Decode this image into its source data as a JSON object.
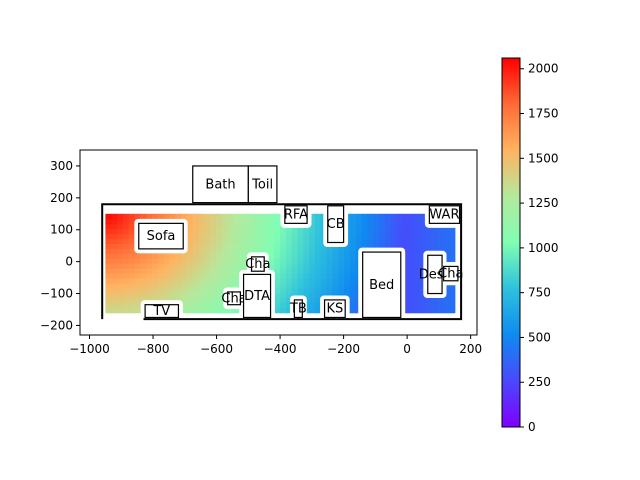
{
  "chart_data": {
    "type": "heatmap",
    "title": "",
    "xlabel": "",
    "ylabel": "",
    "xlim": [
      -1030,
      220
    ],
    "ylim": [
      -230,
      350
    ],
    "xticks": [
      -1000,
      -800,
      -600,
      -400,
      -200,
      0,
      200
    ],
    "yticks": [
      -200,
      -100,
      0,
      100,
      200,
      300
    ],
    "colormap": "rainbow",
    "colorbar": {
      "range": [
        0,
        2060
      ],
      "ticks": [
        0,
        250,
        500,
        750,
        1000,
        1250,
        1500,
        1750,
        2000
      ]
    },
    "heat_source": {
      "x": -950,
      "y": 150,
      "max_value": 2060
    },
    "field_region": {
      "x": [
        -950,
        150
      ],
      "y": [
        -160,
        150
      ]
    },
    "walls": [
      {
        "x": [
          -960,
          -960,
          170,
          170,
          -830
        ],
        "y": [
          -180,
          180,
          180,
          -180,
          -180
        ]
      }
    ],
    "objects": [
      {
        "label": "Bath",
        "x": [
          -675,
          -500
        ],
        "y": [
          185,
          300
        ]
      },
      {
        "label": "Toil",
        "x": [
          -500,
          -410
        ],
        "y": [
          185,
          300
        ]
      },
      {
        "label": "Sofa",
        "x": [
          -845,
          -705
        ],
        "y": [
          40,
          120
        ]
      },
      {
        "label": "RFA",
        "x": [
          -385,
          -315
        ],
        "y": [
          120,
          175
        ]
      },
      {
        "label": "CB",
        "x": [
          -250,
          -200
        ],
        "y": [
          60,
          175
        ]
      },
      {
        "label": "WAR",
        "x": [
          70,
          165
        ],
        "y": [
          120,
          175
        ]
      },
      {
        "label": "Cha",
        "x": [
          -490,
          -450
        ],
        "y": [
          -30,
          15
        ]
      },
      {
        "label": "Cha",
        "x": [
          -565,
          -525
        ],
        "y": [
          -135,
          -95
        ]
      },
      {
        "label": "DTA",
        "x": [
          -515,
          -430
        ],
        "y": [
          -175,
          -40
        ]
      },
      {
        "label": "TB",
        "x": [
          -355,
          -330
        ],
        "y": [
          -175,
          -120
        ]
      },
      {
        "label": "KS",
        "x": [
          -260,
          -195
        ],
        "y": [
          -175,
          -120
        ]
      },
      {
        "label": "Bed",
        "x": [
          -140,
          -20
        ],
        "y": [
          -175,
          30
        ]
      },
      {
        "label": "Desk",
        "x": [
          65,
          110
        ],
        "y": [
          -100,
          20
        ]
      },
      {
        "label": "Cha",
        "x": [
          115,
          160
        ],
        "y": [
          -60,
          -15
        ]
      },
      {
        "label": "TV",
        "x": [
          -825,
          -720
        ],
        "y": [
          -175,
          -135
        ]
      }
    ]
  }
}
